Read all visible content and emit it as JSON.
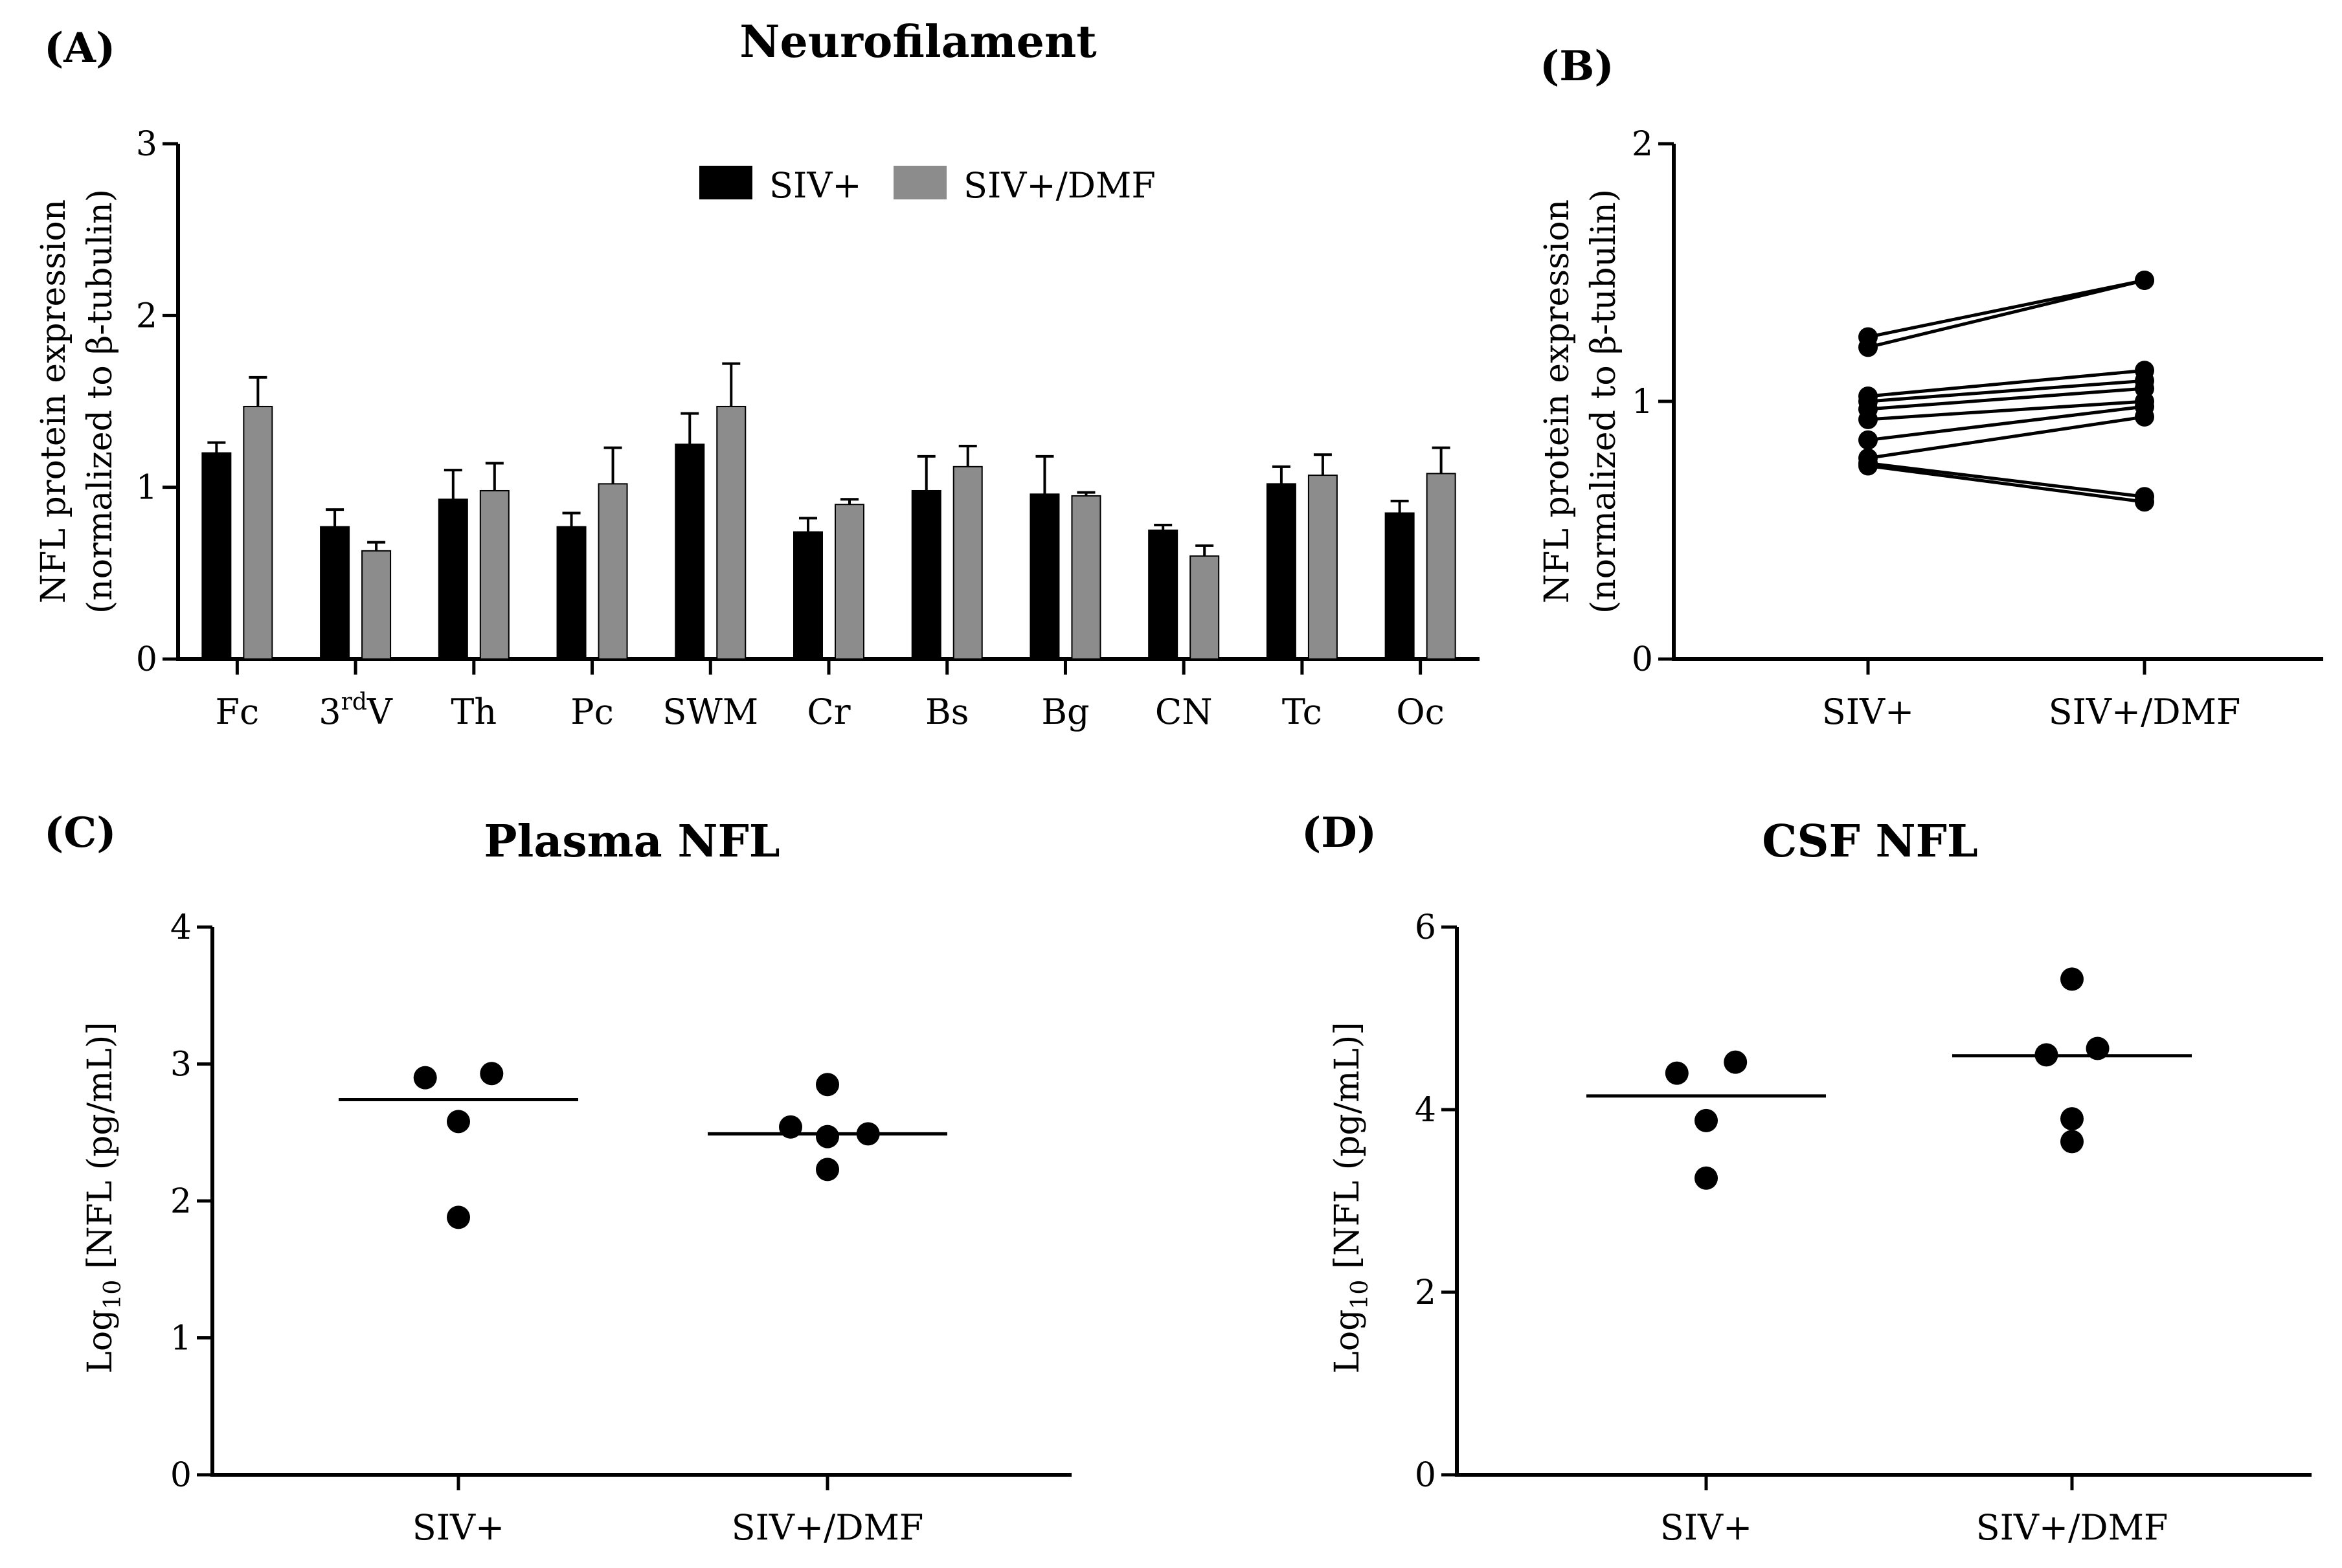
{
  "chart_data": [
    {
      "panel": "(A)",
      "type": "bar",
      "title": "Neurofilament",
      "ylabel_line1": "NFL protein expression",
      "ylabel_line2": "(normalized to β-tubulin)",
      "ylim": [
        0,
        3
      ],
      "yticks": [
        "0",
        "1",
        "2",
        "3"
      ],
      "categories": [
        "Fc",
        "3rdV",
        "Th",
        "Pc",
        "SWM",
        "Cr",
        "Bs",
        "Bg",
        "CN",
        "Tc",
        "Oc"
      ],
      "category_3rd_base": "3",
      "category_3rd_sup": "rd",
      "category_3rd_tail": "V",
      "series": [
        {
          "name": "SIV+",
          "color": "#000000",
          "values": [
            1.2,
            0.77,
            0.93,
            0.77,
            1.25,
            0.74,
            0.98,
            0.96,
            0.75,
            1.02,
            0.85
          ],
          "errors": [
            0.06,
            0.1,
            0.17,
            0.08,
            0.18,
            0.08,
            0.2,
            0.22,
            0.03,
            0.1,
            0.07
          ]
        },
        {
          "name": "SIV+/DMF",
          "color": "#8c8c8c",
          "values": [
            1.47,
            0.63,
            0.98,
            1.02,
            1.47,
            0.9,
            1.12,
            0.95,
            0.6,
            1.07,
            1.08
          ],
          "errors": [
            0.17,
            0.05,
            0.16,
            0.21,
            0.25,
            0.03,
            0.12,
            0.02,
            0.06,
            0.12,
            0.15
          ]
        }
      ],
      "legend": "top-center"
    },
    {
      "panel": "(B)",
      "type": "line",
      "title": "",
      "ylabel_line1": "NFL protein expression",
      "ylabel_line2": "(normalized to β-tubulin)",
      "ylim": [
        0,
        2
      ],
      "yticks": [
        "0",
        "1",
        "2"
      ],
      "categories": [
        "SIV+",
        "SIV+/DMF"
      ],
      "pairs": [
        [
          1.25,
          1.47
        ],
        [
          1.21,
          1.47
        ],
        [
          1.02,
          1.12
        ],
        [
          1.0,
          1.08
        ],
        [
          0.97,
          1.05
        ],
        [
          0.93,
          1.0
        ],
        [
          0.85,
          0.98
        ],
        [
          0.78,
          0.94
        ],
        [
          0.76,
          0.63
        ],
        [
          0.75,
          0.61
        ]
      ]
    },
    {
      "panel": "(C)",
      "type": "scatter",
      "title": "Plasma NFL",
      "ylabel_pre": "Log",
      "ylabel_sub": "10",
      "ylabel_post": " [NFL (pg/mL)]",
      "ylim": [
        0,
        4
      ],
      "yticks": [
        "0",
        "1",
        "2",
        "3",
        "4"
      ],
      "categories": [
        "SIV+",
        "SIV+/DMF"
      ],
      "groups": [
        {
          "name": "SIV+",
          "points": [
            2.9,
            2.93,
            2.58,
            1.88
          ],
          "offsets": [
            -0.09,
            0.09,
            0,
            0
          ],
          "mean": 2.74
        },
        {
          "name": "SIV+/DMF",
          "points": [
            2.85,
            2.54,
            2.47,
            2.49,
            2.23
          ],
          "offsets": [
            0,
            -0.1,
            0,
            0.11,
            0
          ],
          "mean": 2.49
        }
      ]
    },
    {
      "panel": "(D)",
      "type": "scatter",
      "title": "CSF NFL",
      "ylabel_pre": "Log",
      "ylabel_sub": "10",
      "ylabel_post": " [NFL (pg/mL)]",
      "ylim": [
        0,
        6
      ],
      "yticks": [
        "0",
        "2",
        "4",
        "6"
      ],
      "categories": [
        "SIV+",
        "SIV+/DMF"
      ],
      "groups": [
        {
          "name": "SIV+",
          "points": [
            4.4,
            4.52,
            3.88,
            3.25
          ],
          "offsets": [
            -0.08,
            0.08,
            0,
            0
          ],
          "mean": 4.15
        },
        {
          "name": "SIV+/DMF",
          "points": [
            5.43,
            4.6,
            4.67,
            3.9,
            3.65
          ],
          "offsets": [
            0,
            -0.07,
            0.07,
            0,
            0
          ],
          "mean": 4.59
        }
      ]
    }
  ]
}
